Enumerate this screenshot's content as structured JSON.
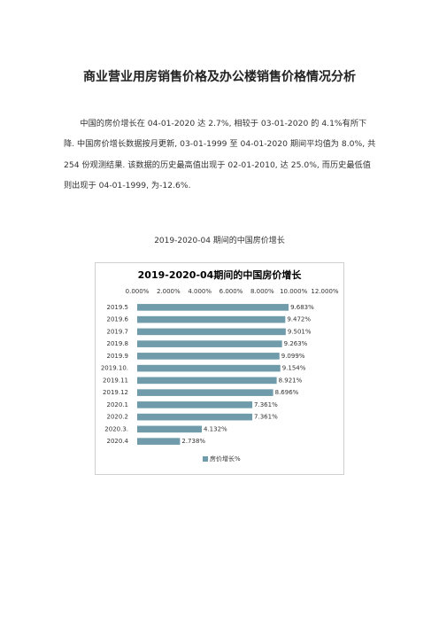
{
  "title": "商业营业用房销售价格及办公楼销售价格情况分析",
  "paragraph": "中国的房价增长在 04-01-2020 达 2.7%, 相较于 03-01-2020 的 4.1%有所下降. 中国房价增长数据按月更新, 03-01-1999 至 04-01-2020 期间平均值为 8.0%, 共 254 份观测结果. 该数据的历史最高值出现于 02-01-2010, 达 25.0%, 而历史最低值则出现于 04-01-1999, 为-12.6%.",
  "caption": "2019-2020-04 期间的中国房价增长",
  "chart_data": {
    "type": "barh",
    "title": "2019-2020-04期间的中国房价增长",
    "categories": [
      "2019.5",
      "2019.6",
      "2019.7",
      "2019.8",
      "2019.9",
      "2019.10.",
      "2019.11",
      "2019.12",
      "2020.1",
      "2020.2",
      "2020.3.",
      "2020.4"
    ],
    "series": [
      {
        "name": "房价增长%",
        "color": "#6f9bab",
        "values": [
          9.683,
          9.472,
          9.501,
          9.263,
          9.099,
          9.154,
          8.921,
          8.696,
          7.361,
          7.361,
          4.132,
          2.738
        ],
        "value_labels": [
          "9.683%",
          "9.472%",
          "9.501%",
          "9.263%",
          "9.099%",
          "9.154%",
          "8.921%",
          "8.696%",
          "7.361%",
          "7.361%",
          "4.132%",
          "2.738%"
        ]
      }
    ],
    "xlim": [
      0,
      12
    ],
    "xticks": [
      {
        "value": 0,
        "label": "0.000%"
      },
      {
        "value": 2,
        "label": "2.000%"
      },
      {
        "value": 4,
        "label": "4.000%"
      },
      {
        "value": 6,
        "label": "6.000%"
      },
      {
        "value": 8,
        "label": "8.000%"
      },
      {
        "value": 10,
        "label": "10.000%"
      },
      {
        "value": 12,
        "label": "12.000%"
      }
    ],
    "legend": "bottom"
  }
}
